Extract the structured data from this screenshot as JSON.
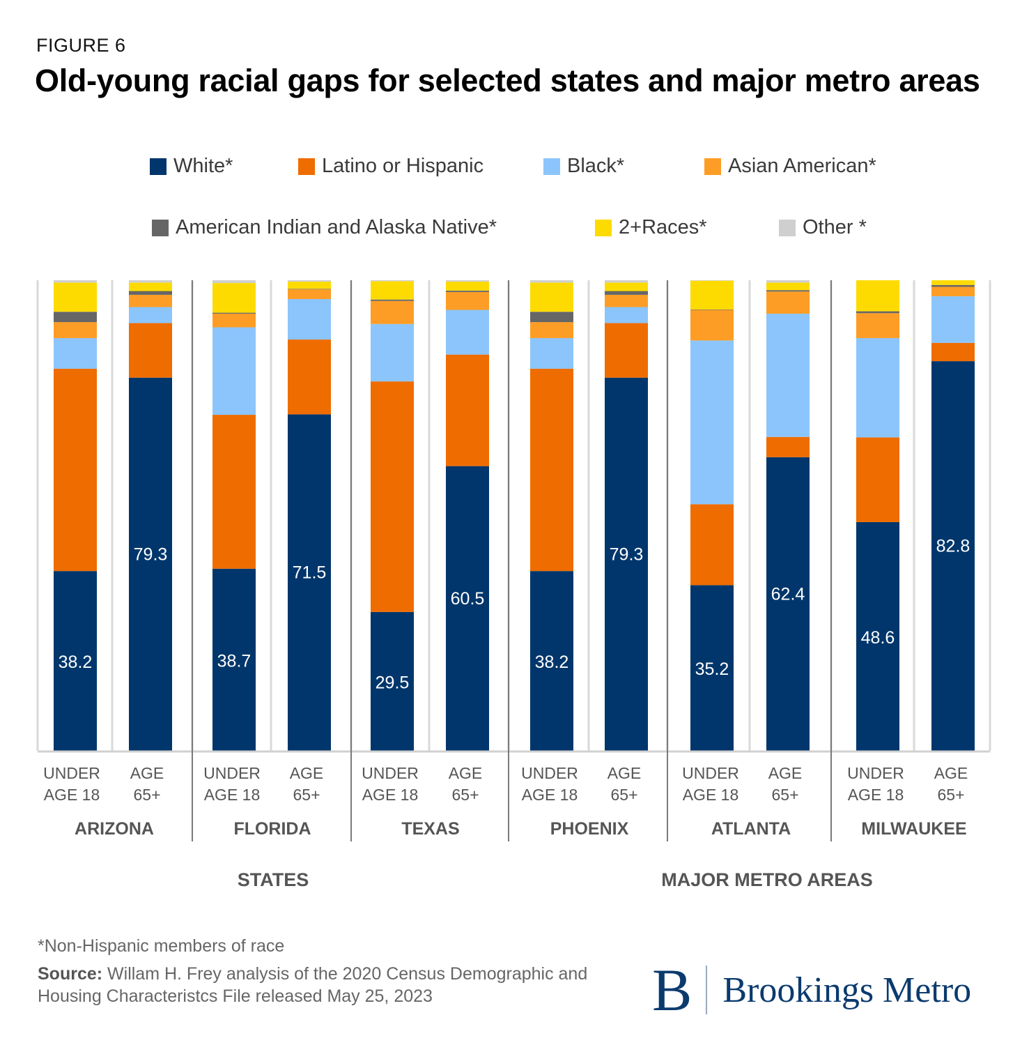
{
  "figure_label": "FIGURE 6",
  "title": "Old-young racial gaps for selected states and major metro areas",
  "colors": {
    "White*": "#00366b",
    "Latino or Hispanic": "#ef6c00",
    "Black*": "#8cc5fb",
    "Asian American*": "#fd9d25",
    "American Indian and Alaska Native*": "#666666",
    "2+Races*": "#fedb00",
    "Other *": "#cfcfcf"
  },
  "legend": [
    {
      "label": "White*",
      "color": "#00366b"
    },
    {
      "label": "Latino or Hispanic",
      "color": "#ef6c00"
    },
    {
      "label": "Black*",
      "color": "#8cc5fb"
    },
    {
      "label": "Asian American*",
      "color": "#fd9d25"
    },
    {
      "label": "American Indian and Alaska Native*",
      "color": "#666666"
    },
    {
      "label": "2+Races*",
      "color": "#fedb00"
    },
    {
      "label": "Other *",
      "color": "#cfcfcf"
    }
  ],
  "chart_data": {
    "type": "bar",
    "stacked": true,
    "ylim": [
      0,
      100
    ],
    "grid": false,
    "legend_position": "top",
    "series_names": [
      "White*",
      "Latino or Hispanic",
      "Black*",
      "Asian American*",
      "American Indian and Alaska Native*",
      "2+Races*",
      "Other *"
    ],
    "groups": [
      {
        "name": "ARIZONA",
        "supergroup": "STATES",
        "bars": [
          {
            "label_lines": [
              "UNDER",
              "AGE 18"
            ],
            "values": [
              38.2,
              43.0,
              6.5,
              3.4,
              2.2,
              6.2,
              0.5
            ]
          },
          {
            "label_lines": [
              "AGE",
              "65+"
            ],
            "values": [
              79.3,
              11.6,
              3.4,
              2.6,
              0.8,
              1.8,
              0.5
            ]
          }
        ]
      },
      {
        "name": "FLORIDA",
        "supergroup": "STATES",
        "bars": [
          {
            "label_lines": [
              "UNDER",
              "AGE 18"
            ],
            "values": [
              38.7,
              32.7,
              18.6,
              2.9,
              0.2,
              6.3,
              0.6
            ]
          },
          {
            "label_lines": [
              "AGE",
              "65+"
            ],
            "values": [
              71.5,
              15.9,
              8.6,
              2.1,
              0.1,
              1.5,
              0.3
            ]
          }
        ]
      },
      {
        "name": "TEXAS",
        "supergroup": "STATES",
        "bars": [
          {
            "label_lines": [
              "UNDER",
              "AGE 18"
            ],
            "values": [
              29.5,
              49.0,
              12.2,
              4.9,
              0.3,
              3.9,
              0.2
            ]
          },
          {
            "label_lines": [
              "AGE",
              "65+"
            ],
            "values": [
              60.5,
              23.7,
              9.5,
              3.8,
              0.3,
              1.9,
              0.3
            ]
          }
        ]
      },
      {
        "name": "PHOENIX",
        "supergroup": "MAJOR METRO AREAS",
        "bars": [
          {
            "label_lines": [
              "UNDER",
              "AGE 18"
            ],
            "values": [
              38.2,
              43.0,
              6.5,
              3.4,
              2.2,
              6.2,
              0.5
            ]
          },
          {
            "label_lines": [
              "AGE",
              "65+"
            ],
            "values": [
              79.3,
              11.6,
              3.4,
              2.6,
              0.8,
              1.8,
              0.5
            ]
          }
        ]
      },
      {
        "name": "ATLANTA",
        "supergroup": "MAJOR METRO AREAS",
        "bars": [
          {
            "label_lines": [
              "UNDER",
              "AGE 18"
            ],
            "values": [
              35.2,
              17.2,
              34.8,
              6.5,
              0.1,
              6.1,
              0.1
            ]
          },
          {
            "label_lines": [
              "AGE",
              "65+"
            ],
            "values": [
              62.4,
              4.3,
              26.2,
              4.7,
              0.3,
              1.6,
              0.5
            ]
          }
        ]
      },
      {
        "name": "MILWAUKEE",
        "supergroup": "MAJOR METRO AREAS",
        "bars": [
          {
            "label_lines": [
              "UNDER",
              "AGE 18"
            ],
            "values": [
              48.6,
              18.0,
              21.1,
              5.3,
              0.4,
              6.6,
              0.0
            ]
          },
          {
            "label_lines": [
              "AGE",
              "65+"
            ],
            "values": [
              82.8,
              3.9,
              9.9,
              2.0,
              0.4,
              1.0,
              0.0
            ]
          }
        ]
      }
    ],
    "supergroups": [
      "STATES",
      "MAJOR METRO AREAS"
    ]
  },
  "footnote": "*Non-Hispanic members of race",
  "source_label": "Source:",
  "source_text": "Willam H. Frey analysis of the 2020 Census Demographic and Housing Characteristcs File released May 25, 2023",
  "logo": {
    "letter": "B",
    "name": "Brookings Metro"
  }
}
